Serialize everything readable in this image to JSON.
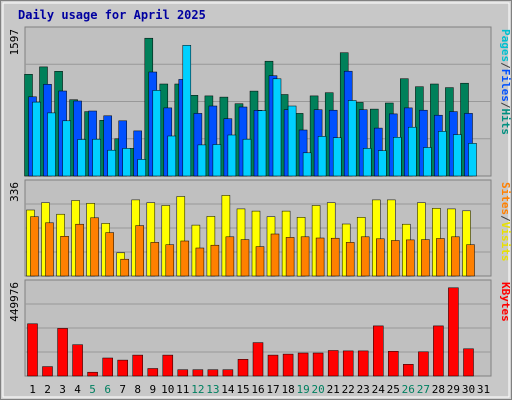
{
  "chart_data": {
    "type": "bar",
    "title": "Daily usage for April 2025",
    "days": [
      1,
      2,
      3,
      4,
      5,
      6,
      7,
      8,
      9,
      10,
      11,
      12,
      13,
      14,
      15,
      16,
      17,
      18,
      19,
      20,
      21,
      22,
      23,
      24,
      25,
      26,
      27,
      28,
      29,
      30,
      31
    ],
    "weekend_days": [
      5,
      6,
      12,
      13,
      19,
      20,
      26,
      27
    ],
    "panels": [
      {
        "id": "hits-files-pages",
        "scale_label": "1597",
        "ylim": [
          0,
          1597
        ],
        "legend": [
          "Pages",
          "/",
          "Files",
          "/",
          "Hits"
        ],
        "legend_colors": [
          "#00c0d0",
          "#404040",
          "#0050ff",
          "#404040",
          "#009080"
        ],
        "series": [
          {
            "name": "Hits",
            "color": "#00805a",
            "values": [
              1105,
              1185,
              1137,
              829,
              700,
              605,
              404,
              300,
              1497,
              1000,
              1000,
              877,
              870,
              857,
              785,
              922,
              1247,
              885,
              680,
              870,
              905,
              1340,
              800,
              727,
              793,
              1057,
              970,
              1000,
              960,
              1008,
              0
            ]
          },
          {
            "name": "Files",
            "color": "#0050ff",
            "values": [
              860,
              996,
              923,
              815,
              706,
              654,
              600,
              490,
              1130,
              740,
              1050,
              680,
              760,
              622,
              750,
              714,
              1090,
              720,
              500,
              720,
              715,
              1138,
              720,
              520,
              675,
              740,
              715,
              660,
              700,
              680,
              0
            ]
          },
          {
            "name": "Pages",
            "color": "#00d0ff",
            "values": [
              803,
              685,
              600,
              396,
              400,
              280,
              300,
              180,
              930,
              435,
              1420,
              338,
              342,
              445,
              400,
              710,
              1056,
              760,
              252,
              430,
              416,
              820,
              300,
              276,
              420,
              530,
              310,
              484,
              450,
              354,
              0
            ]
          }
        ]
      },
      {
        "id": "visits-sites",
        "scale_label": "336",
        "ylim": [
          0,
          336
        ],
        "legend": [
          "Sites",
          "/",
          "Visits"
        ],
        "legend_colors": [
          "#ff8000",
          "#404040",
          "#e8e000"
        ],
        "series": [
          {
            "name": "Visits",
            "color": "#ffff00",
            "values": [
              236,
              262,
              221,
              270,
              260,
              188,
              83,
              272,
              262,
              252,
              284,
              182,
              213,
              288,
              240,
              232,
              212,
              232,
              210,
              252,
              262,
              186,
              210,
              272,
              272,
              185,
              262,
              242,
              240,
              233,
              0
            ]
          },
          {
            "name": "Sites",
            "color": "#ff8000",
            "values": [
              212,
              190,
              142,
              185,
              208,
              155,
              60,
              180,
              120,
              112,
              125,
              100,
              110,
              140,
              130,
              105,
              150,
              138,
              140,
              136,
              135,
              120,
              140,
              133,
              127,
              129,
              130,
              134,
              140,
              112,
              0
            ]
          }
        ]
      },
      {
        "id": "kbytes",
        "scale_label": "449976",
        "ylim": [
          0,
          449976
        ],
        "legend": [
          "KBytes"
        ],
        "legend_colors": [
          "#ff0000"
        ],
        "series": [
          {
            "name": "KBytes",
            "color": "#ff0000",
            "values": [
              250000,
              45000,
              228000,
              150000,
              18000,
              86000,
              76000,
              100000,
              36000,
              100000,
              30000,
              30000,
              30000,
              30000,
              80000,
              160000,
              100000,
              105000,
              110000,
              110000,
              122000,
              120000,
              120000,
              240000,
              118000,
              56000,
              116000,
              240000,
              422000,
              130000,
              0
            ]
          }
        ]
      }
    ]
  }
}
